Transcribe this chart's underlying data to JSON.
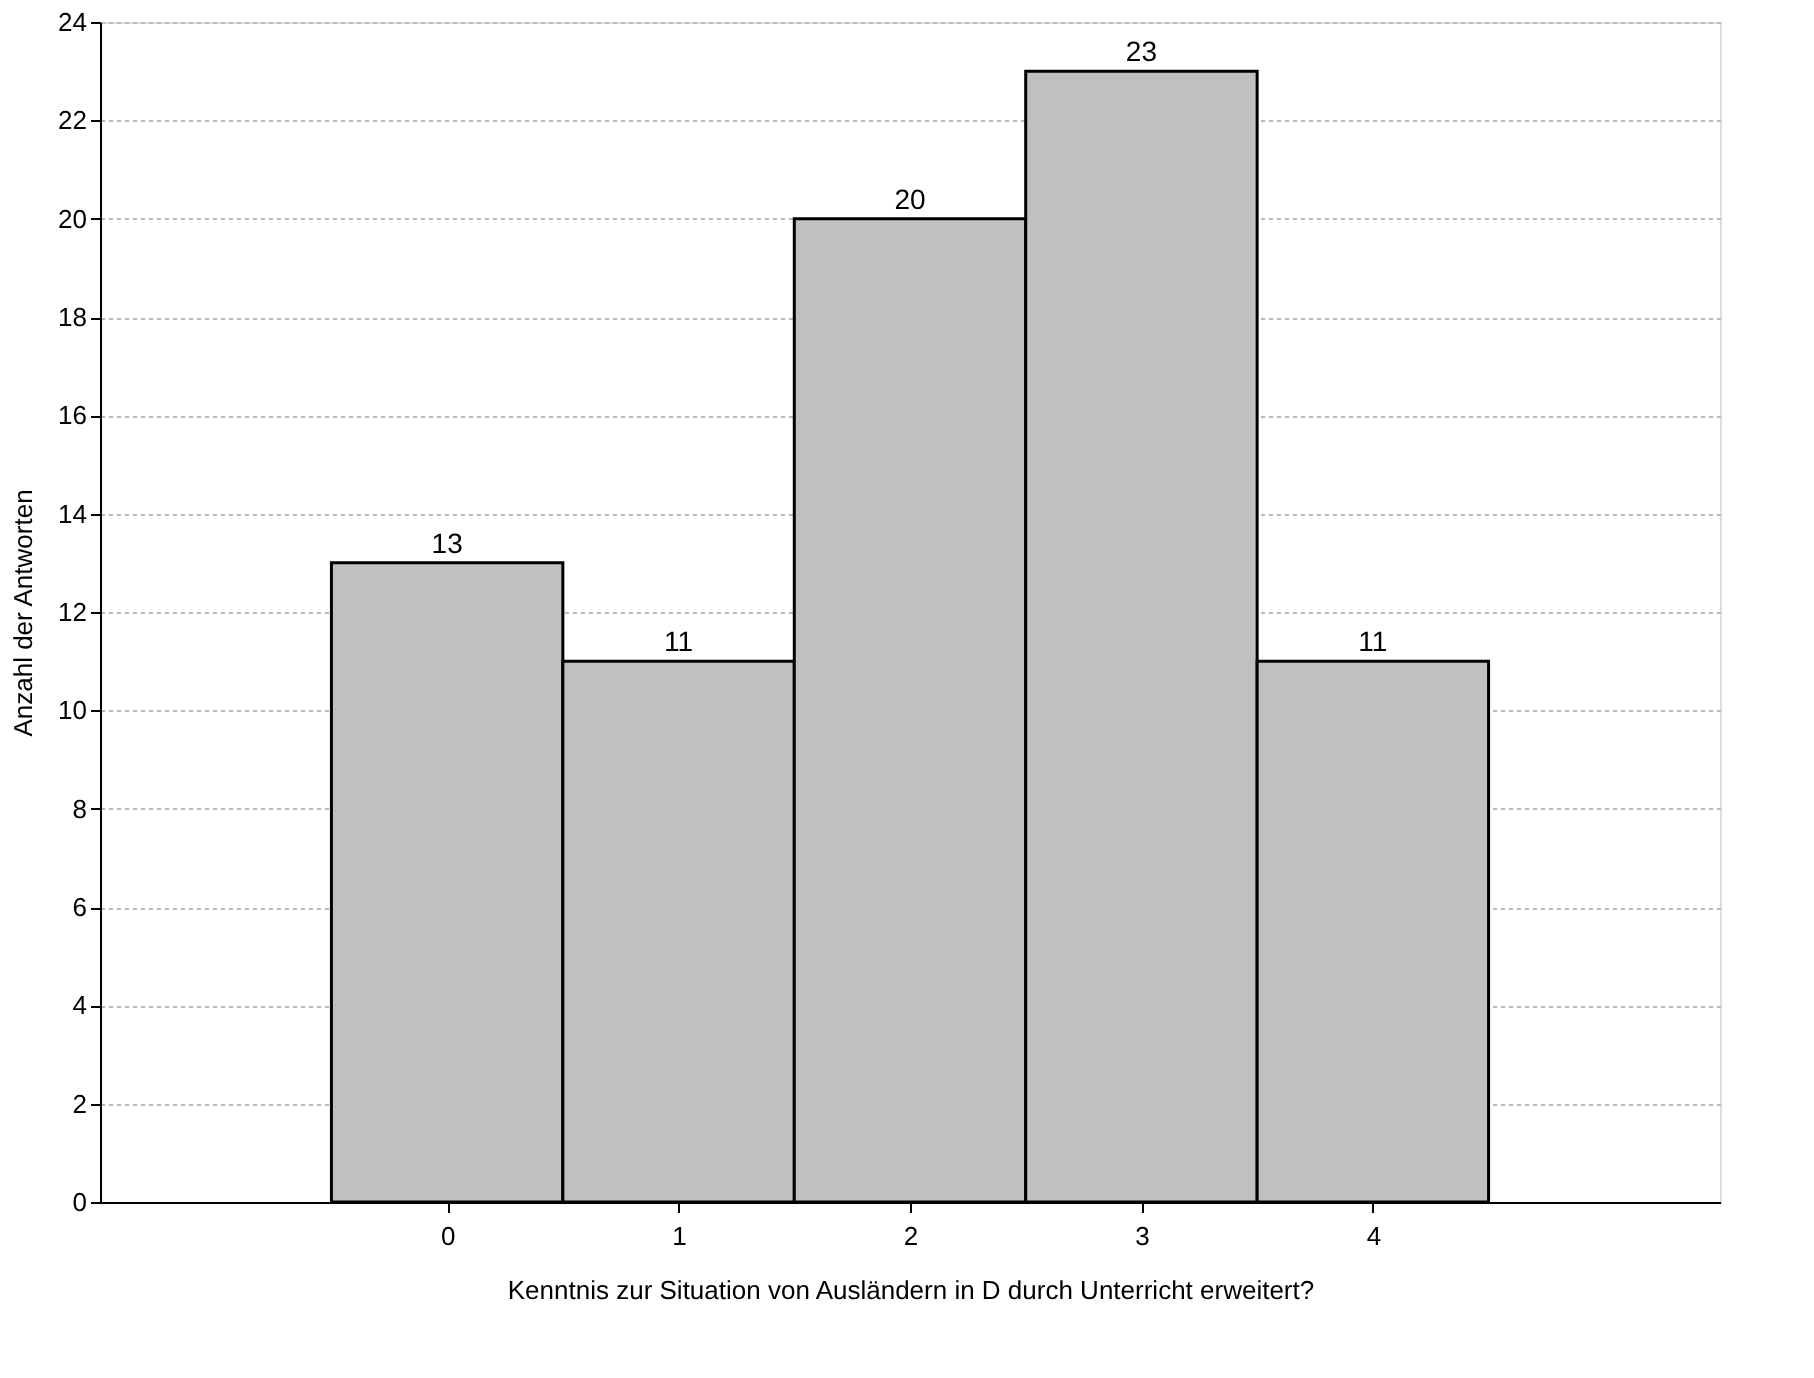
{
  "chart_data": {
    "type": "bar",
    "xlabel": "Kenntnis zur Situation von Ausländern in D durch Unterricht erweitert?",
    "ylabel": "Anzahl der Antworten",
    "x": [
      0,
      1,
      2,
      3,
      4
    ],
    "values": [
      13,
      11,
      20,
      23,
      11
    ],
    "color": "#c0c0c0",
    "xlim": [
      -1.5,
      5.5
    ],
    "xticks": [
      0,
      1,
      2,
      3,
      4
    ],
    "ylim": [
      0,
      24
    ],
    "yticks": [
      0,
      2,
      4,
      6,
      8,
      10,
      12,
      14,
      16,
      18,
      20,
      22,
      24
    ],
    "grid": "y",
    "data_labels": true
  }
}
